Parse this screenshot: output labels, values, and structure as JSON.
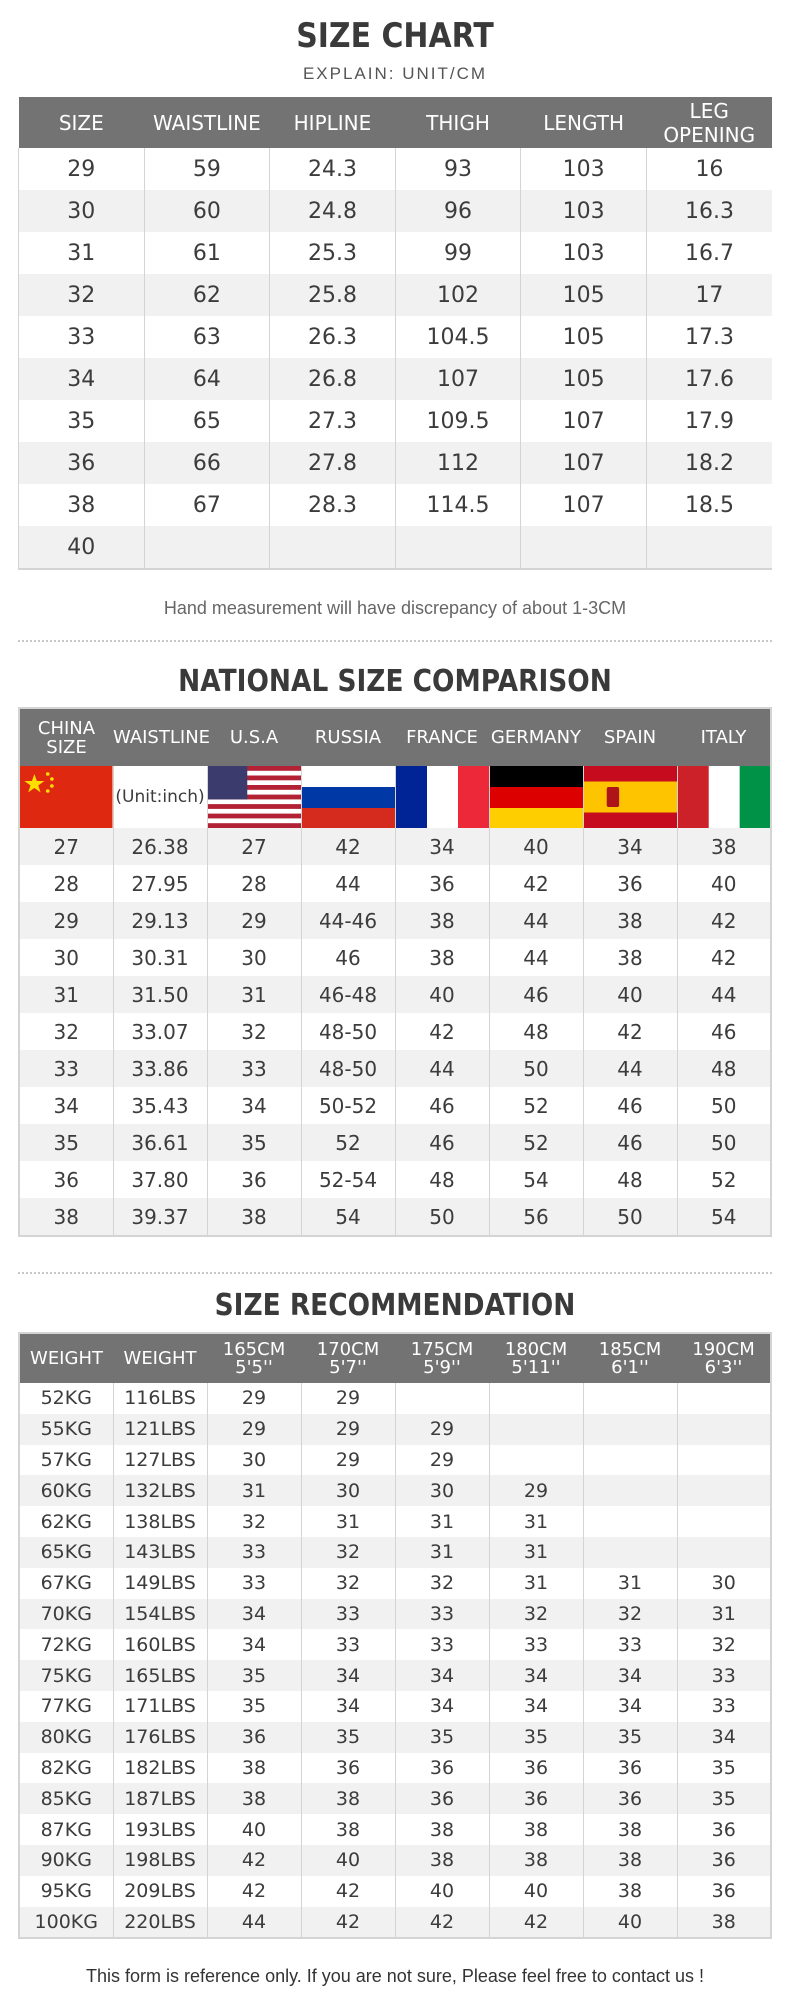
{
  "size_chart": {
    "title": "SIZE CHART",
    "subtitle": "EXPLAIN: UNIT/CM",
    "headers": [
      "SIZE",
      "WAISTLINE",
      "HIPLINE",
      "THIGH",
      "LENGTH",
      "LEG OPENING"
    ],
    "rows": [
      [
        "29",
        "59",
        "24.3",
        "93",
        "103",
        "16"
      ],
      [
        "30",
        "60",
        "24.8",
        "96",
        "103",
        "16.3"
      ],
      [
        "31",
        "61",
        "25.3",
        "99",
        "103",
        "16.7"
      ],
      [
        "32",
        "62",
        "25.8",
        "102",
        "105",
        "17"
      ],
      [
        "33",
        "63",
        "26.3",
        "104.5",
        "105",
        "17.3"
      ],
      [
        "34",
        "64",
        "26.8",
        "107",
        "105",
        "17.6"
      ],
      [
        "35",
        "65",
        "27.3",
        "109.5",
        "107",
        "17.9"
      ],
      [
        "36",
        "66",
        "27.8",
        "112",
        "107",
        "18.2"
      ],
      [
        "38",
        "67",
        "28.3",
        "114.5",
        "107",
        "18.5"
      ],
      [
        "40",
        "",
        "",
        "",
        "",
        ""
      ]
    ],
    "note": "Hand measurement will have discrepancy of about 1-3CM"
  },
  "comparison": {
    "title": "NATIONAL SIZE COMPARISON",
    "headers": [
      "CHINA SIZE",
      "WAISTLINE",
      "U.S.A",
      "RUSSIA",
      "FRANCE",
      "GERMANY",
      "SPAIN",
      "ITALY"
    ],
    "unit_label": "(Unit:inch)",
    "flags": [
      "china-flag-icon",
      "",
      "usa-flag-icon",
      "russia-flag-icon",
      "france-flag-icon",
      "germany-flag-icon",
      "spain-flag-icon",
      "italy-flag-icon"
    ],
    "rows": [
      [
        "27",
        "26.38",
        "27",
        "42",
        "34",
        "40",
        "34",
        "38"
      ],
      [
        "28",
        "27.95",
        "28",
        "44",
        "36",
        "42",
        "36",
        "40"
      ],
      [
        "29",
        "29.13",
        "29",
        "44-46",
        "38",
        "44",
        "38",
        "42"
      ],
      [
        "30",
        "30.31",
        "30",
        "46",
        "38",
        "44",
        "38",
        "42"
      ],
      [
        "31",
        "31.50",
        "31",
        "46-48",
        "40",
        "46",
        "40",
        "44"
      ],
      [
        "32",
        "33.07",
        "32",
        "48-50",
        "42",
        "48",
        "42",
        "46"
      ],
      [
        "33",
        "33.86",
        "33",
        "48-50",
        "44",
        "50",
        "44",
        "48"
      ],
      [
        "34",
        "35.43",
        "34",
        "50-52",
        "46",
        "52",
        "46",
        "50"
      ],
      [
        "35",
        "36.61",
        "35",
        "52",
        "46",
        "52",
        "46",
        "50"
      ],
      [
        "36",
        "37.80",
        "36",
        "52-54",
        "48",
        "54",
        "48",
        "52"
      ],
      [
        "38",
        "39.37",
        "38",
        "54",
        "50",
        "56",
        "50",
        "54"
      ]
    ]
  },
  "recommendation": {
    "title": "SIZE RECOMMENDATION",
    "headers": [
      {
        "l1": "WEIGHT",
        "l2": ""
      },
      {
        "l1": "WEIGHT",
        "l2": ""
      },
      {
        "l1": "165CM",
        "l2": "5'5''"
      },
      {
        "l1": "170CM",
        "l2": "5'7''"
      },
      {
        "l1": "175CM",
        "l2": "5'9''"
      },
      {
        "l1": "180CM",
        "l2": "5'11''"
      },
      {
        "l1": "185CM",
        "l2": "6'1''"
      },
      {
        "l1": "190CM",
        "l2": "6'3''"
      }
    ],
    "rows": [
      [
        "52KG",
        "116LBS",
        "29",
        "29",
        "",
        "",
        "",
        ""
      ],
      [
        "55KG",
        "121LBS",
        "29",
        "29",
        "29",
        "",
        "",
        ""
      ],
      [
        "57KG",
        "127LBS",
        "30",
        "29",
        "29",
        "",
        "",
        ""
      ],
      [
        "60KG",
        "132LBS",
        "31",
        "30",
        "30",
        "29",
        "",
        ""
      ],
      [
        "62KG",
        "138LBS",
        "32",
        "31",
        "31",
        "31",
        "",
        ""
      ],
      [
        "65KG",
        "143LBS",
        "33",
        "32",
        "31",
        "31",
        "",
        ""
      ],
      [
        "67KG",
        "149LBS",
        "33",
        "32",
        "32",
        "31",
        "31",
        "30"
      ],
      [
        "70KG",
        "154LBS",
        "34",
        "33",
        "33",
        "32",
        "32",
        "31"
      ],
      [
        "72KG",
        "160LBS",
        "34",
        "33",
        "33",
        "33",
        "33",
        "32"
      ],
      [
        "75KG",
        "165LBS",
        "35",
        "34",
        "34",
        "34",
        "34",
        "33"
      ],
      [
        "77KG",
        "171LBS",
        "35",
        "34",
        "34",
        "34",
        "34",
        "33"
      ],
      [
        "80KG",
        "176LBS",
        "36",
        "35",
        "35",
        "35",
        "35",
        "34"
      ],
      [
        "82KG",
        "182LBS",
        "38",
        "36",
        "36",
        "36",
        "36",
        "35"
      ],
      [
        "85KG",
        "187LBS",
        "38",
        "38",
        "36",
        "36",
        "36",
        "35"
      ],
      [
        "87KG",
        "193LBS",
        "40",
        "38",
        "38",
        "38",
        "38",
        "36"
      ],
      [
        "90KG",
        "198LBS",
        "42",
        "40",
        "38",
        "38",
        "38",
        "36"
      ],
      [
        "95KG",
        "209LBS",
        "42",
        "42",
        "40",
        "40",
        "38",
        "36"
      ],
      [
        "100KG",
        "220LBS",
        "44",
        "42",
        "42",
        "42",
        "40",
        "38"
      ]
    ],
    "footer": "This form is reference only. If you are not sure, Please feel free to contact us !"
  },
  "colors": {
    "header_bg": "#737373",
    "stripe": "#f1f1f1",
    "border": "#d4d4d4"
  }
}
